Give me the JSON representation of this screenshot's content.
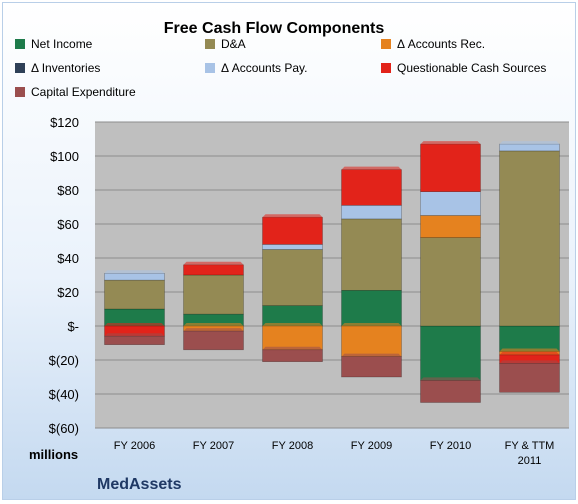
{
  "chart_data": {
    "type": "bar",
    "stacked": true,
    "title": "Free Cash Flow Components",
    "ylabel": "millions",
    "company": "MedAssets",
    "categories": [
      "FY 2006",
      "FY 2007",
      "FY 2008",
      "FY 2009",
      "FY 2010",
      "FY & TTM 2011"
    ],
    "ylim": [
      -60,
      120
    ],
    "yticks": [
      {
        "value": 120,
        "label": "$120"
      },
      {
        "value": 100,
        "label": "$100"
      },
      {
        "value": 80,
        "label": "$80"
      },
      {
        "value": 60,
        "label": "$60"
      },
      {
        "value": 40,
        "label": "$40"
      },
      {
        "value": 20,
        "label": "$20"
      },
      {
        "value": 0,
        "label": "$-"
      },
      {
        "value": -20,
        "label": "$(20)"
      },
      {
        "value": -40,
        "label": "$(40)"
      },
      {
        "value": -60,
        "label": "$(60)"
      }
    ],
    "legend_position": "top",
    "series": [
      {
        "name": "Net Income",
        "color": "#1e7b4a",
        "values": [
          10,
          7,
          12,
          21,
          -32,
          -15
        ]
      },
      {
        "name": "D&A",
        "color": "#948a54",
        "values": [
          17,
          23,
          33,
          42,
          52,
          103
        ]
      },
      {
        "name": "Δ Accounts Rec.",
        "color": "#e5821f",
        "values": [
          0,
          -3,
          -14,
          -18,
          13,
          -2
        ]
      },
      {
        "name": "Δ Inventories",
        "color": "#2e4057",
        "values": [
          0,
          0,
          0,
          0,
          0,
          0
        ]
      },
      {
        "name": "Δ Accounts Pay.",
        "color": "#a8c3e6",
        "values": [
          4,
          0,
          3,
          8,
          14,
          4
        ]
      },
      {
        "name": "Questionable Cash Sources",
        "color": "#e2231a",
        "values": [
          -6,
          6,
          16,
          21,
          28,
          -5
        ]
      },
      {
        "name": "Capital Expenditure",
        "color": "#9b4e4e",
        "values": [
          -5,
          -11,
          -7,
          -12,
          -13,
          -17
        ]
      }
    ]
  }
}
